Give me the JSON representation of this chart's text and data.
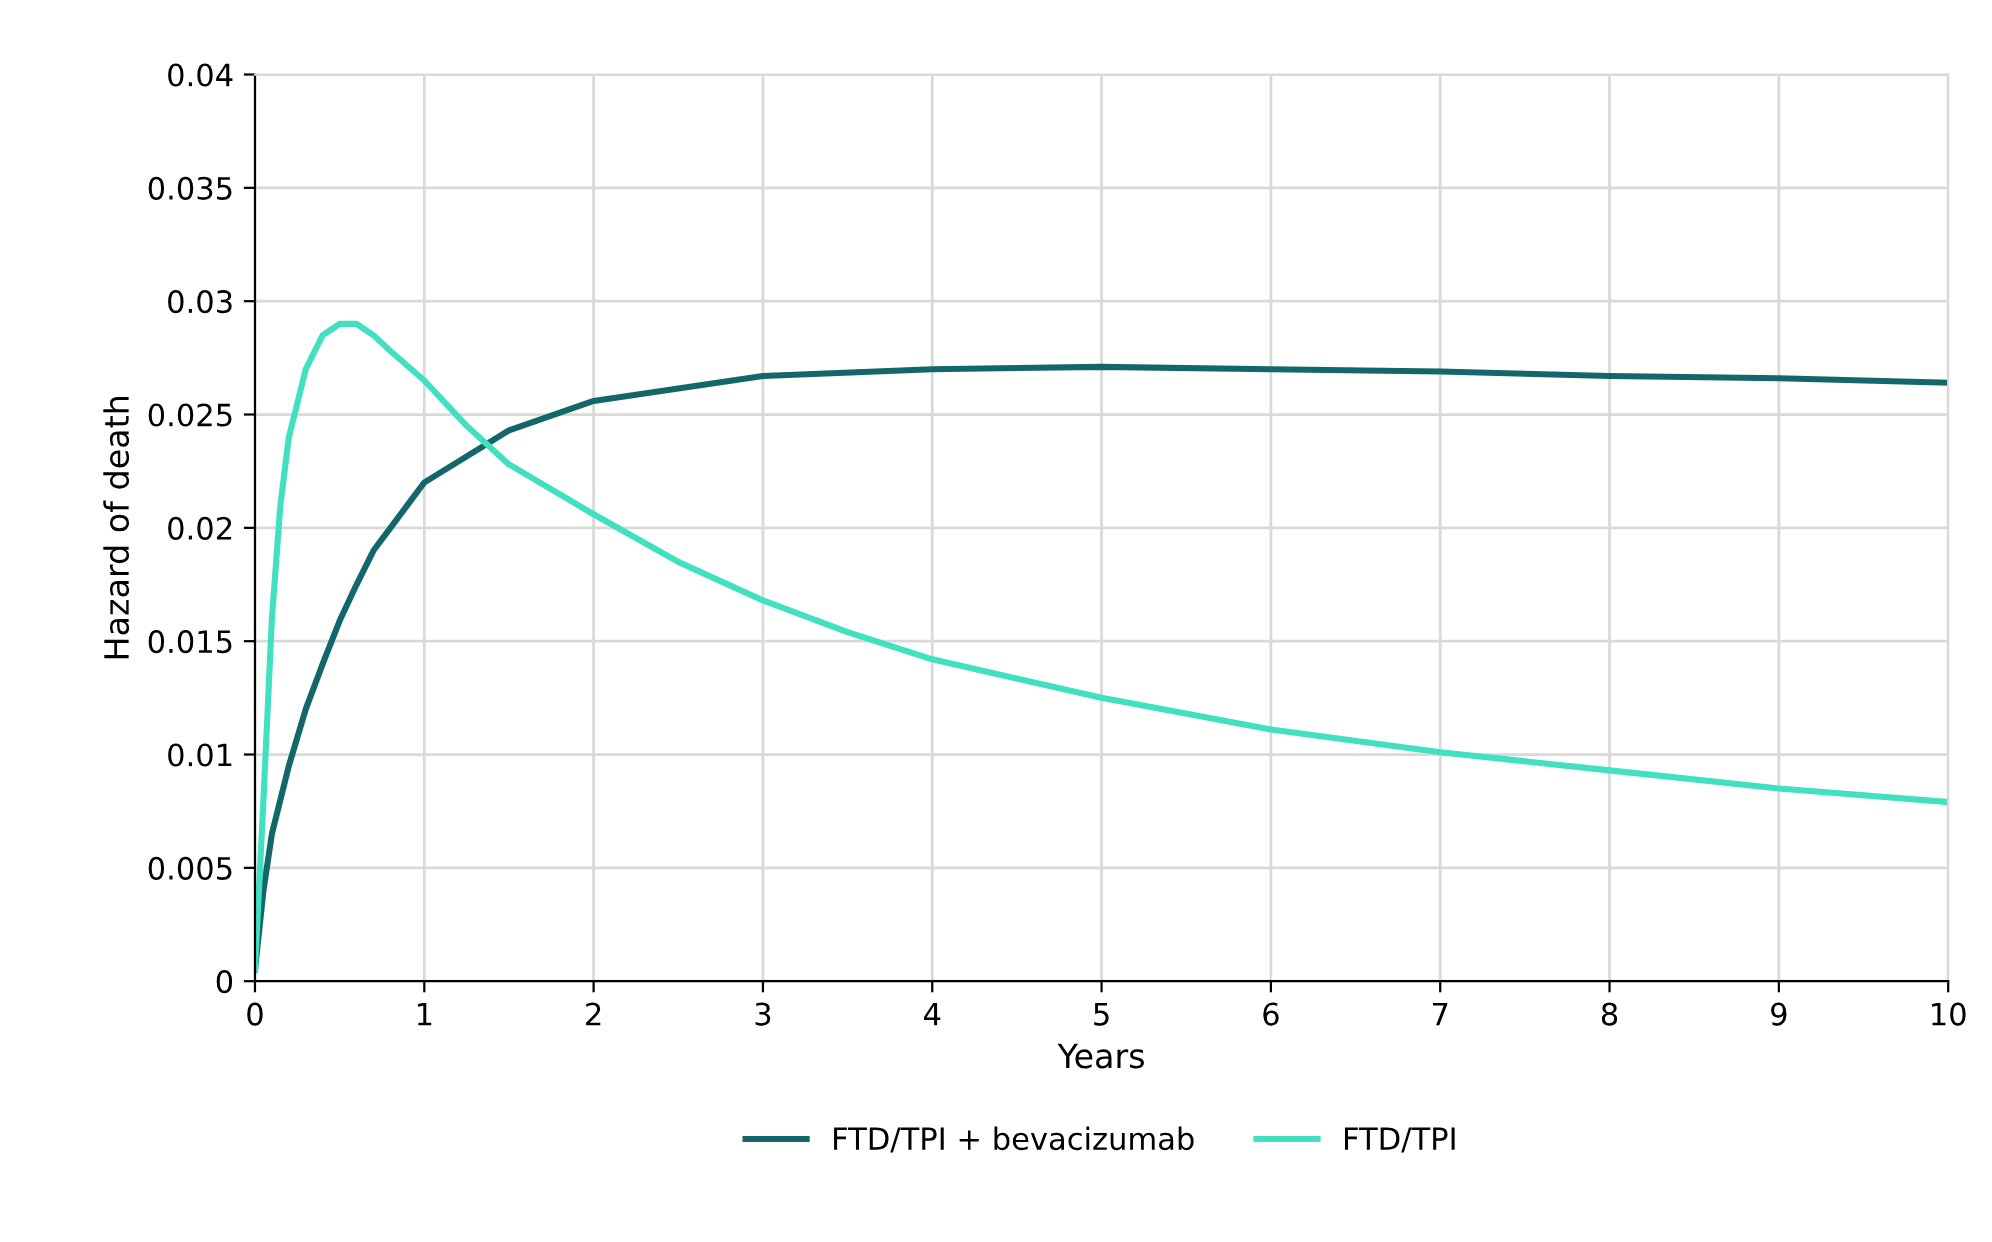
{
  "chart_data": {
    "type": "line",
    "xlabel": "Years",
    "ylabel": "Hazard of death",
    "xlim": [
      0,
      10
    ],
    "ylim": [
      0,
      0.04
    ],
    "xticks": [
      0,
      1,
      2,
      3,
      4,
      5,
      6,
      7,
      8,
      9,
      10
    ],
    "yticks": [
      0,
      {
        "value": 0.005,
        "label": "0.005"
      },
      {
        "value": 0.01,
        "label": "0.01"
      },
      {
        "value": 0.015,
        "label": "0.015"
      },
      {
        "value": 0.02,
        "label": "0.02"
      },
      {
        "value": 0.025,
        "label": "0.025"
      },
      {
        "value": 0.03,
        "label": "0.03"
      },
      {
        "value": 0.035,
        "label": "0.035"
      },
      {
        "value": 0.04,
        "label": "0.04"
      }
    ],
    "grid": true,
    "legend": "bottom",
    "marker": "none",
    "line_style": "solid",
    "series": [
      {
        "name": "FTD/TPI + bevacizumab",
        "color": "#13676a",
        "x": [
          0,
          0.05,
          0.1,
          0.2,
          0.3,
          0.4,
          0.5,
          0.6,
          0.7,
          0.8,
          0.9,
          1,
          1.5,
          2,
          3,
          4,
          5,
          6,
          7,
          8,
          9,
          10
        ],
        "values": [
          0.0005,
          0.004,
          0.0065,
          0.0095,
          0.012,
          0.014,
          0.0159,
          0.0175,
          0.019,
          0.02,
          0.021,
          0.022,
          0.0243,
          0.0256,
          0.0267,
          0.027,
          0.0271,
          0.027,
          0.0269,
          0.0267,
          0.0266,
          0.0264
        ]
      },
      {
        "name": "FTD/TPI",
        "color": "#40e0c0",
        "x": [
          0,
          0.05,
          0.1,
          0.15,
          0.2,
          0.3,
          0.4,
          0.5,
          0.6,
          0.7,
          0.8,
          1,
          1.25,
          1.5,
          2,
          2.5,
          3,
          3.5,
          4,
          5,
          6,
          7,
          8,
          9,
          10
        ],
        "values": [
          0.0005,
          0.008,
          0.016,
          0.021,
          0.024,
          0.027,
          0.0285,
          0.029,
          0.029,
          0.0285,
          0.0278,
          0.0265,
          0.0245,
          0.0228,
          0.0206,
          0.0185,
          0.0168,
          0.0154,
          0.0142,
          0.0125,
          0.0111,
          0.0101,
          0.0093,
          0.0085,
          0.0079
        ]
      }
    ]
  }
}
